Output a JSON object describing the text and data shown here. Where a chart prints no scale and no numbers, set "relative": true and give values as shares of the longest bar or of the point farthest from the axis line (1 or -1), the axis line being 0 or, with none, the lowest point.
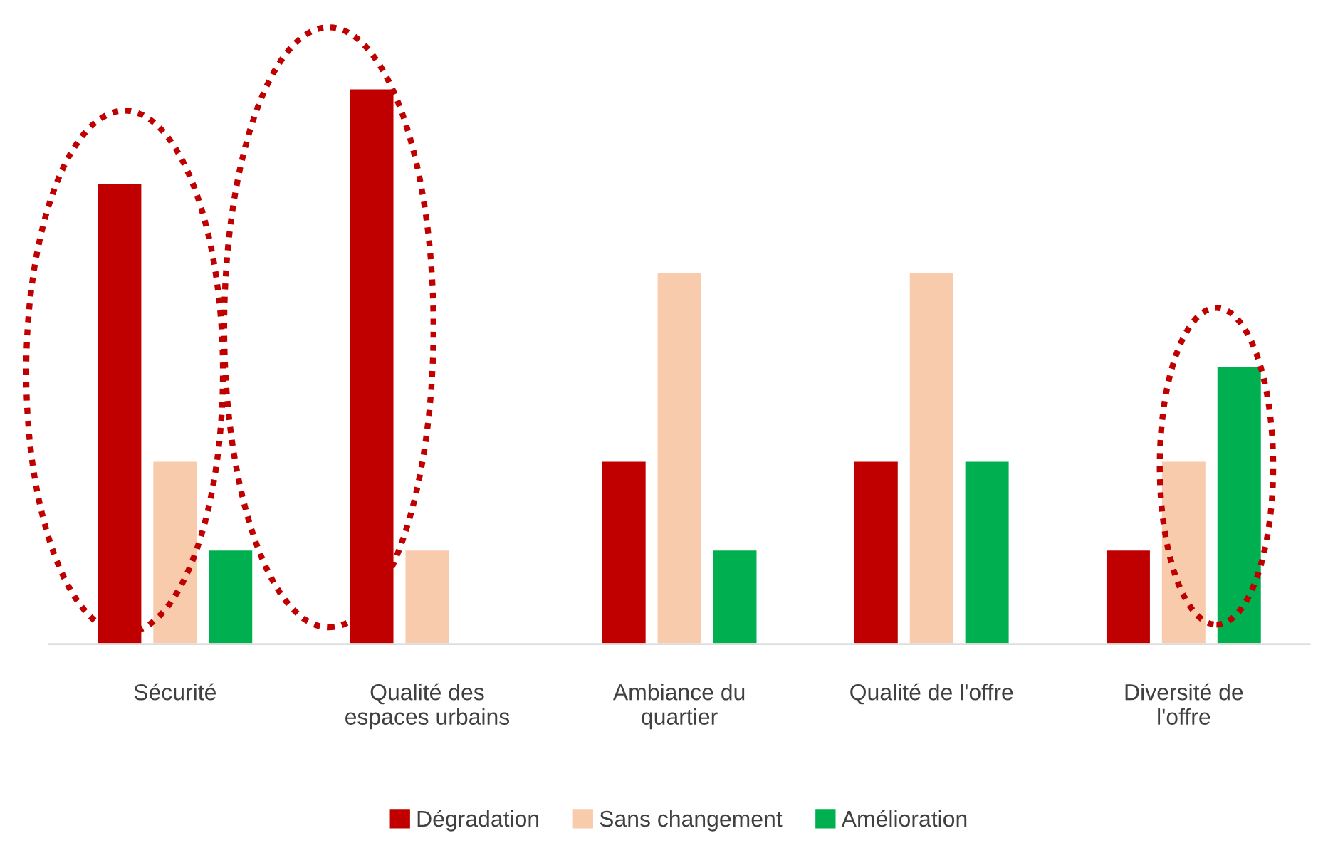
{
  "chart_data": {
    "type": "bar",
    "relative": true,
    "categories": [
      "Sécurité",
      "Qualité des\nespaces urbains",
      "Ambiance du\nquartier",
      "Qualité de l'offre",
      "Diversité de\nl'offre"
    ],
    "series": [
      {
        "name": "Dégradation",
        "color": "#c00000",
        "values": [
          0.83,
          1,
          0.33,
          0.33,
          0.17
        ]
      },
      {
        "name": "Sans changement",
        "color": "#f8cbad",
        "values": [
          0.33,
          0.17,
          0.67,
          0.67,
          0.33
        ]
      },
      {
        "name": "Amélioration",
        "color": "#00b050",
        "values": [
          0.17,
          null,
          0.17,
          0.33,
          0.5
        ]
      }
    ],
    "legend": "bottom",
    "grid": false
  }
}
